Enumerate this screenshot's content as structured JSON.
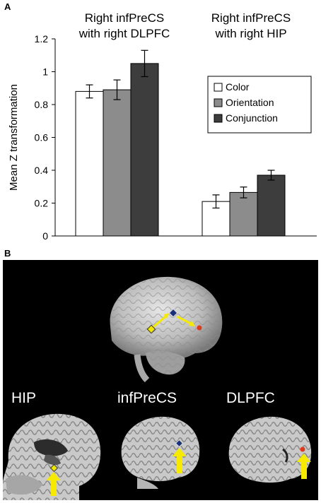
{
  "panel_a_label": "A",
  "panel_b_label": "B",
  "chart_data": {
    "type": "bar",
    "groups": [
      "Right infPreCS with right DLPFC",
      "Right infPreCS with right HIP"
    ],
    "group_title_lines": [
      [
        "Right infPreCS",
        "with right DLPFC"
      ],
      [
        "Right infPreCS",
        "with right HIP"
      ]
    ],
    "series": [
      {
        "name": "Color",
        "color": "#ffffff",
        "values": [
          0.88,
          0.21
        ],
        "errors": [
          0.04,
          0.04
        ]
      },
      {
        "name": "Orientation",
        "color": "#8c8c8c",
        "values": [
          0.89,
          0.265
        ],
        "errors": [
          0.06,
          0.033
        ]
      },
      {
        "name": "Conjunction",
        "color": "#3d3d3d",
        "values": [
          1.05,
          0.37
        ],
        "errors": [
          0.08,
          0.03
        ]
      }
    ],
    "ylabel": "Mean Z transformation",
    "xlabel": "",
    "ylim": [
      0,
      1.2
    ],
    "yticks": [
      0,
      0.2,
      0.4,
      0.6,
      0.8,
      1,
      1.2
    ],
    "ytick_labels": [
      "0",
      "0.2",
      "0.4",
      "0.6",
      "0.8",
      "1",
      "1.2"
    ],
    "legend_placement": "right",
    "grid": false
  },
  "panel_b": {
    "regions": [
      "HIP",
      "infPreCS",
      "DLPFC"
    ],
    "marker_colors": {
      "hip": "#f2e600",
      "infprecs": "#1a2f7a",
      "dlpfc": "#e03a1a",
      "arrow": "#f5ea00"
    }
  }
}
